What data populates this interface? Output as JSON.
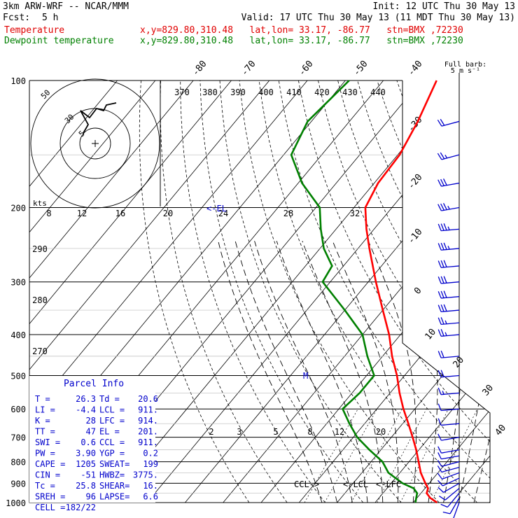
{
  "header": {
    "model": "3km ARW-WRF -- NCAR/MMM",
    "init": "Init: 12 UTC Thu 30 May 13",
    "fcst_label": "Fcst:",
    "fcst_value": "5 h",
    "valid": "Valid: 17 UTC Thu 30 May 13 (11 MDT Thu 30 May 13)",
    "temp_label": "Temperature",
    "temp_info": "x,y=829.80,310.48   lat,lon= 33.17, -86.77   stn=BMX ,72230",
    "dew_label": "Dewpoint temperature",
    "dew_info": "x,y=829.80,310.48   lat,lon= 33.17, -86.77   stn=BMX ,72230",
    "temp_color": "#ff0000",
    "dew_color": "#008000"
  },
  "chart_data": {
    "type": "line",
    "title": "",
    "xlabel": "",
    "ylabel": "",
    "y_scale": "log",
    "ylim": [
      1000,
      100
    ],
    "pressure_ticks": [
      100,
      200,
      300,
      400,
      500,
      600,
      700,
      800,
      900,
      1000
    ],
    "isotherm_ticks": [
      -80,
      -70,
      -60,
      -50,
      -40,
      -30,
      -20,
      -10,
      0,
      10,
      20,
      30,
      40
    ],
    "theta_ticks": [
      370,
      380,
      390,
      400,
      410,
      420,
      430,
      440
    ],
    "theta_low_ticks": [
      290,
      280,
      270
    ],
    "mixing_ratio_ticks": [
      2,
      3,
      5,
      8,
      12,
      20
    ],
    "hodo_speed_ticks": [
      8,
      12,
      16,
      20,
      24,
      28,
      32
    ],
    "hodo_unit": "kts",
    "hodo_rings": [
      5,
      30,
      50
    ],
    "series": [
      {
        "name": "Temperature",
        "color": "#ff0000",
        "p": [
          1000,
          975,
          950,
          925,
          900,
          850,
          800,
          750,
          700,
          650,
          600,
          550,
          500,
          450,
          400,
          350,
          300,
          250,
          225,
          200,
          175,
          150,
          125,
          100
        ],
        "t": [
          26.3,
          23.5,
          21.5,
          20.8,
          19.0,
          15.5,
          12.5,
          9.3,
          5.6,
          1.5,
          -3.0,
          -7.5,
          -12.0,
          -17.5,
          -23.0,
          -30.0,
          -38.0,
          -47.0,
          -52.0,
          -57.0,
          -59.0,
          -59.5,
          -62.0,
          -66.0
        ]
      },
      {
        "name": "Dewpoint temperature",
        "color": "#008000",
        "p": [
          1000,
          975,
          950,
          925,
          900,
          850,
          800,
          750,
          700,
          650,
          600,
          550,
          500,
          450,
          400,
          350,
          300,
          275,
          250,
          225,
          200,
          175,
          150,
          125,
          100
        ],
        "t": [
          20.6,
          19.8,
          19.0,
          17.0,
          13.0,
          7.0,
          3.0,
          -3.0,
          -9.0,
          -14.0,
          -19.0,
          -18.0,
          -18.0,
          -24.0,
          -30.0,
          -40.0,
          -52.0,
          -53.0,
          -59.0,
          -64.0,
          -69.0,
          -79.0,
          -88.0,
          -91.0,
          -89.0
        ]
      }
    ],
    "levels": {
      "lcl_label": "<-LCL",
      "lfc_label": "<-LFC",
      "ccl_label": "CCL->",
      "el_label": "<-EL",
      "m_label": "M"
    },
    "wind_barbs": {
      "title": "Full barb:",
      "unit": "5 m s⁻¹",
      "p": [
        1000,
        975,
        950,
        925,
        900,
        875,
        850,
        825,
        800,
        775,
        750,
        700,
        650,
        600,
        550,
        500,
        450,
        400,
        375,
        350,
        325,
        300,
        275,
        250,
        225,
        200,
        175,
        150,
        125
      ],
      "speed_ms": [
        5,
        5,
        6,
        7,
        7,
        7,
        7,
        7,
        7,
        6,
        6,
        6,
        6,
        6,
        8,
        10,
        12,
        13,
        14,
        15,
        16,
        17,
        17,
        18,
        18,
        19,
        16,
        13,
        11
      ],
      "dir_deg": [
        200,
        210,
        220,
        230,
        240,
        245,
        250,
        255,
        255,
        260,
        260,
        260,
        265,
        265,
        265,
        265,
        265,
        265,
        265,
        265,
        265,
        265,
        265,
        265,
        265,
        260,
        260,
        255,
        255
      ]
    }
  },
  "parcel": {
    "title": "Parcel Info",
    "rows": [
      [
        "T  =",
        "26.3",
        "Td =",
        "20.6"
      ],
      [
        "LI =",
        "-4.4",
        "LCL =",
        "911."
      ],
      [
        "K  =",
        "28",
        "LFC =",
        "914."
      ],
      [
        "TT =",
        "47",
        "EL =",
        "201."
      ],
      [
        "SWI =",
        "0.6",
        "CCL =",
        "911."
      ],
      [
        "PW =",
        "3.90",
        "YGP =",
        "0.2"
      ],
      [
        "CAPE =",
        "1205",
        "SWEAT=",
        "199"
      ],
      [
        "CIN =",
        "-51",
        "HWBZ=",
        "3775."
      ],
      [
        "Tc =",
        "25.8",
        "SHEAR=",
        "16."
      ],
      [
        "SREH =",
        "96",
        "LAPSE=",
        "6.6"
      ],
      [
        "CELL =",
        "182/22",
        "",
        ""
      ]
    ]
  }
}
